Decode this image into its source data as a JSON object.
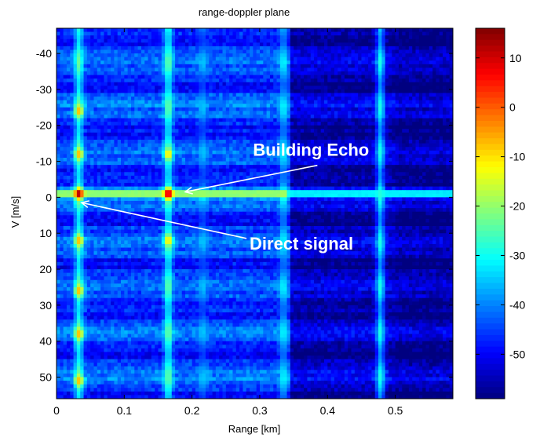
{
  "chart_data": {
    "type": "heatmap",
    "title": "range-doppler plane",
    "xlabel": "Range [km]",
    "ylabel": "V [m/s]",
    "xlim": [
      0,
      0.585
    ],
    "ylim": [
      -47,
      56
    ],
    "y_reversed": true,
    "x_ticks": [
      "0",
      "0.1",
      "0.2",
      "0.3",
      "0.4",
      "0.5"
    ],
    "x_tick_values": [
      0,
      0.1,
      0.2,
      0.3,
      0.4,
      0.5
    ],
    "y_ticks": [
      "-40",
      "-30",
      "-20",
      "-10",
      "0",
      "10",
      "20",
      "30",
      "40",
      "50"
    ],
    "y_tick_values": [
      -40,
      -30,
      -20,
      -10,
      0,
      10,
      20,
      30,
      40,
      50
    ],
    "colormap": "jet",
    "colorbar": {
      "range": [
        -59,
        16
      ],
      "ticks": [
        "10",
        "0",
        "-10",
        "-20",
        "-30",
        "-40",
        "-50"
      ],
      "tick_values": [
        10,
        0,
        -10,
        -20,
        -30,
        -40,
        -50
      ]
    },
    "features": {
      "zero_doppler_level": -16,
      "vertical_streaks": [
        {
          "range": 0.033,
          "level": -28
        },
        {
          "range": 0.165,
          "level": -28
        },
        {
          "range": 0.216,
          "level": -40
        },
        {
          "range": 0.335,
          "level": -36
        },
        {
          "range": 0.478,
          "level": -34
        }
      ],
      "peaks": [
        {
          "range": 0.033,
          "velocity": -1,
          "level": 15
        },
        {
          "range": 0.165,
          "velocity": -1,
          "level": 14
        },
        {
          "range": 0.033,
          "velocity": -24,
          "level": -6
        },
        {
          "range": 0.033,
          "velocity": -12,
          "level": -6
        },
        {
          "range": 0.033,
          "velocity": 12,
          "level": -6
        },
        {
          "range": 0.033,
          "velocity": 26,
          "level": -6
        },
        {
          "range": 0.033,
          "velocity": 38,
          "level": -6
        },
        {
          "range": 0.033,
          "velocity": 51,
          "level": -6
        },
        {
          "range": 0.165,
          "velocity": -12,
          "level": -10
        },
        {
          "range": 0.165,
          "velocity": 12,
          "level": -10
        }
      ]
    },
    "annotations": [
      {
        "text": "Building Echo",
        "x": 0.29,
        "y": -11.5,
        "arrow_to": [
          0.19,
          -1.5
        ]
      },
      {
        "text": "Direct signal",
        "x": 0.285,
        "y": 14.5,
        "arrow_to": [
          0.037,
          1.5
        ]
      }
    ]
  }
}
